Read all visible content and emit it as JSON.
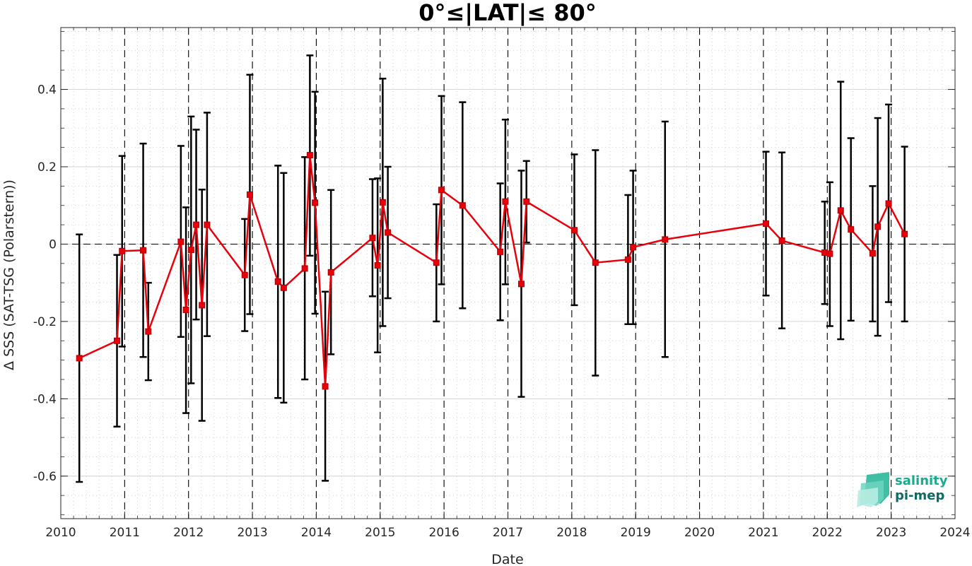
{
  "chart_data": {
    "type": "scatter",
    "title": "0°≤|LAT|≤ 80°",
    "xlabel": "Date",
    "ylabel": "Δ SSS (SAT-TSG (Polarstern))",
    "xlim": [
      2010,
      2024
    ],
    "ylim": [
      -0.71,
      0.56
    ],
    "x_ticks": [
      "2010",
      "2011",
      "2012",
      "2013",
      "2014",
      "2015",
      "2016",
      "2017",
      "2018",
      "2019",
      "2020",
      "2021",
      "2022",
      "2023",
      "2024"
    ],
    "y_ticks": [
      "-0.6",
      "-0.4",
      "-0.2",
      "0",
      "0.2",
      "0.4"
    ],
    "grid": true,
    "reference_line": 0,
    "year_separators": "dashed vertical lines at each year",
    "series": [
      {
        "style": "red line with square markers, black error bars",
        "color": "#e8000b",
        "errorbar_color": "#000000",
        "points": [
          {
            "x": 2010.29,
            "y": -0.295,
            "lo": -0.615,
            "hi": 0.025
          },
          {
            "x": 2010.88,
            "y": -0.25,
            "lo": -0.472,
            "hi": -0.028
          },
          {
            "x": 2010.96,
            "y": -0.018,
            "lo": -0.265,
            "hi": 0.228
          },
          {
            "x": 2011.29,
            "y": -0.016,
            "lo": -0.292,
            "hi": 0.26
          },
          {
            "x": 2011.37,
            "y": -0.226,
            "lo": -0.352,
            "hi": -0.1
          },
          {
            "x": 2011.88,
            "y": 0.006,
            "lo": -0.24,
            "hi": 0.254
          },
          {
            "x": 2011.96,
            "y": -0.17,
            "lo": -0.437,
            "hi": 0.095
          },
          {
            "x": 2012.04,
            "y": -0.015,
            "lo": -0.36,
            "hi": 0.33
          },
          {
            "x": 2012.12,
            "y": 0.05,
            "lo": -0.195,
            "hi": 0.296
          },
          {
            "x": 2012.21,
            "y": -0.158,
            "lo": -0.457,
            "hi": 0.141
          },
          {
            "x": 2012.29,
            "y": 0.05,
            "lo": -0.238,
            "hi": 0.34
          },
          {
            "x": 2012.88,
            "y": -0.08,
            "lo": -0.225,
            "hi": 0.065
          },
          {
            "x": 2012.96,
            "y": 0.128,
            "lo": -0.181,
            "hi": 0.438
          },
          {
            "x": 2013.4,
            "y": -0.097,
            "lo": -0.398,
            "hi": 0.203
          },
          {
            "x": 2013.49,
            "y": -0.113,
            "lo": -0.41,
            "hi": 0.184
          },
          {
            "x": 2013.82,
            "y": -0.063,
            "lo": -0.35,
            "hi": 0.225
          },
          {
            "x": 2013.9,
            "y": 0.23,
            "lo": -0.03,
            "hi": 0.488
          },
          {
            "x": 2013.98,
            "y": 0.107,
            "lo": -0.18,
            "hi": 0.394
          },
          {
            "x": 2014.14,
            "y": -0.368,
            "lo": -0.612,
            "hi": -0.123
          },
          {
            "x": 2014.23,
            "y": -0.073,
            "lo": -0.285,
            "hi": 0.14
          },
          {
            "x": 2014.88,
            "y": 0.016,
            "lo": -0.135,
            "hi": 0.168
          },
          {
            "x": 2014.96,
            "y": -0.055,
            "lo": -0.28,
            "hi": 0.17
          },
          {
            "x": 2015.04,
            "y": 0.108,
            "lo": -0.212,
            "hi": 0.428
          },
          {
            "x": 2015.12,
            "y": 0.03,
            "lo": -0.14,
            "hi": 0.2
          },
          {
            "x": 2015.88,
            "y": -0.048,
            "lo": -0.2,
            "hi": 0.103
          },
          {
            "x": 2015.96,
            "y": 0.14,
            "lo": -0.104,
            "hi": 0.383
          },
          {
            "x": 2016.29,
            "y": 0.1,
            "lo": -0.166,
            "hi": 0.367
          },
          {
            "x": 2016.88,
            "y": -0.02,
            "lo": -0.197,
            "hi": 0.157
          },
          {
            "x": 2016.96,
            "y": 0.11,
            "lo": -0.104,
            "hi": 0.322
          },
          {
            "x": 2017.21,
            "y": -0.103,
            "lo": -0.395,
            "hi": 0.19
          },
          {
            "x": 2017.29,
            "y": 0.11,
            "lo": 0.004,
            "hi": 0.215
          },
          {
            "x": 2018.04,
            "y": 0.036,
            "lo": -0.158,
            "hi": 0.232
          },
          {
            "x": 2018.37,
            "y": -0.048,
            "lo": -0.34,
            "hi": 0.243
          },
          {
            "x": 2018.88,
            "y": -0.04,
            "lo": -0.207,
            "hi": 0.127
          },
          {
            "x": 2018.96,
            "y": -0.008,
            "lo": -0.207,
            "hi": 0.19
          },
          {
            "x": 2019.46,
            "y": 0.012,
            "lo": -0.292,
            "hi": 0.317
          },
          {
            "x": 2021.04,
            "y": 0.053,
            "lo": -0.133,
            "hi": 0.239
          },
          {
            "x": 2021.29,
            "y": 0.009,
            "lo": -0.218,
            "hi": 0.237
          },
          {
            "x": 2021.96,
            "y": -0.022,
            "lo": -0.155,
            "hi": 0.11
          },
          {
            "x": 2022.04,
            "y": -0.025,
            "lo": -0.212,
            "hi": 0.16
          },
          {
            "x": 2022.21,
            "y": 0.087,
            "lo": -0.246,
            "hi": 0.42
          },
          {
            "x": 2022.37,
            "y": 0.038,
            "lo": -0.198,
            "hi": 0.274
          },
          {
            "x": 2022.71,
            "y": -0.024,
            "lo": -0.2,
            "hi": 0.15
          },
          {
            "x": 2022.79,
            "y": 0.045,
            "lo": -0.237,
            "hi": 0.326
          },
          {
            "x": 2022.96,
            "y": 0.105,
            "lo": -0.15,
            "hi": 0.361
          },
          {
            "x": 2023.21,
            "y": 0.026,
            "lo": -0.2,
            "hi": 0.252
          }
        ]
      }
    ]
  },
  "logo": {
    "line1": "salinity",
    "line2": "pi-mep",
    "color1": "#1aaa8e",
    "color2": "#0e6b61"
  }
}
